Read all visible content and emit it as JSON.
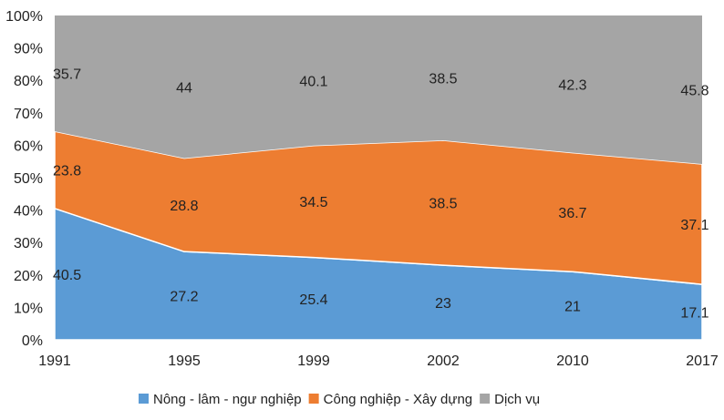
{
  "chart_data": {
    "type": "area",
    "stacked": "percent",
    "categories": [
      "1991",
      "1995",
      "1999",
      "2002",
      "2010",
      "2017"
    ],
    "series": [
      {
        "name": "Nông - lâm - ngư nghiệp",
        "color": "#5B9BD5",
        "values": [
          40.5,
          27.2,
          25.4,
          23,
          21,
          17.1
        ]
      },
      {
        "name": "Công nghiệp - Xây dựng",
        "color": "#ED7D31",
        "values": [
          23.8,
          28.8,
          34.5,
          38.5,
          36.7,
          37.1
        ]
      },
      {
        "name": "Dịch vụ",
        "color": "#A5A5A5",
        "values": [
          35.7,
          44,
          40.1,
          38.5,
          42.3,
          45.8
        ]
      }
    ],
    "y_ticks": [
      "0%",
      "10%",
      "20%",
      "30%",
      "40%",
      "50%",
      "60%",
      "70%",
      "80%",
      "90%",
      "100%"
    ],
    "ylim": [
      0,
      100
    ],
    "grid": false,
    "data_labels": true,
    "legend_position": "bottom"
  }
}
